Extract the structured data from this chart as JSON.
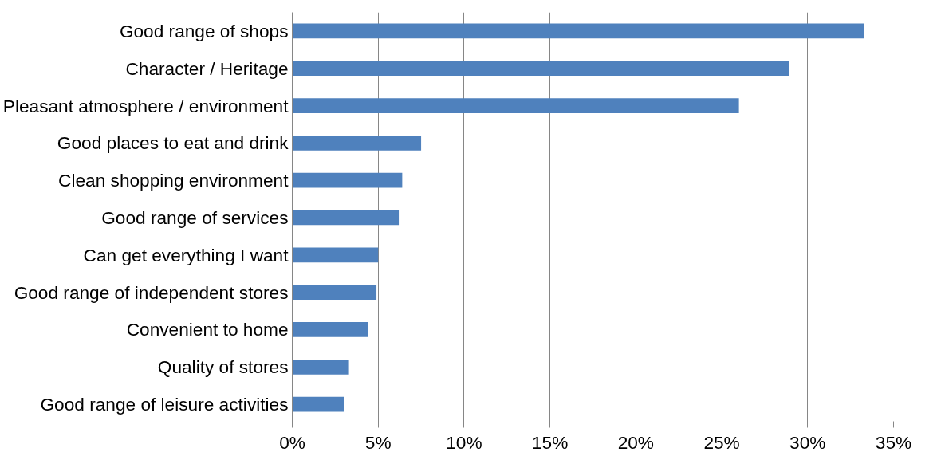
{
  "chart_data": {
    "type": "bar",
    "orientation": "horizontal",
    "categories": [
      "Good range of shops",
      "Character / Heritage",
      "Pleasant atmosphere / environment",
      "Good places to eat and drink",
      "Clean shopping environment",
      "Good range of services",
      "Can get everything I want",
      "Good range of independent stores",
      "Convenient to home",
      "Quality of stores",
      "Good range of leisure activities"
    ],
    "values": [
      33.3,
      28.9,
      26.0,
      7.5,
      6.4,
      6.2,
      5.0,
      4.9,
      4.4,
      3.3,
      3.0
    ],
    "color": "#4f81bd",
    "xlim": [
      0,
      35
    ],
    "xticks": [
      {
        "value": 0,
        "label": "0%"
      },
      {
        "value": 5,
        "label": "5%"
      },
      {
        "value": 10,
        "label": "10%"
      },
      {
        "value": 15,
        "label": "15%"
      },
      {
        "value": 20,
        "label": "20%"
      },
      {
        "value": 25,
        "label": "25%"
      },
      {
        "value": 30,
        "label": "30%"
      },
      {
        "value": 35,
        "label": "35%"
      }
    ],
    "grid": "x"
  }
}
